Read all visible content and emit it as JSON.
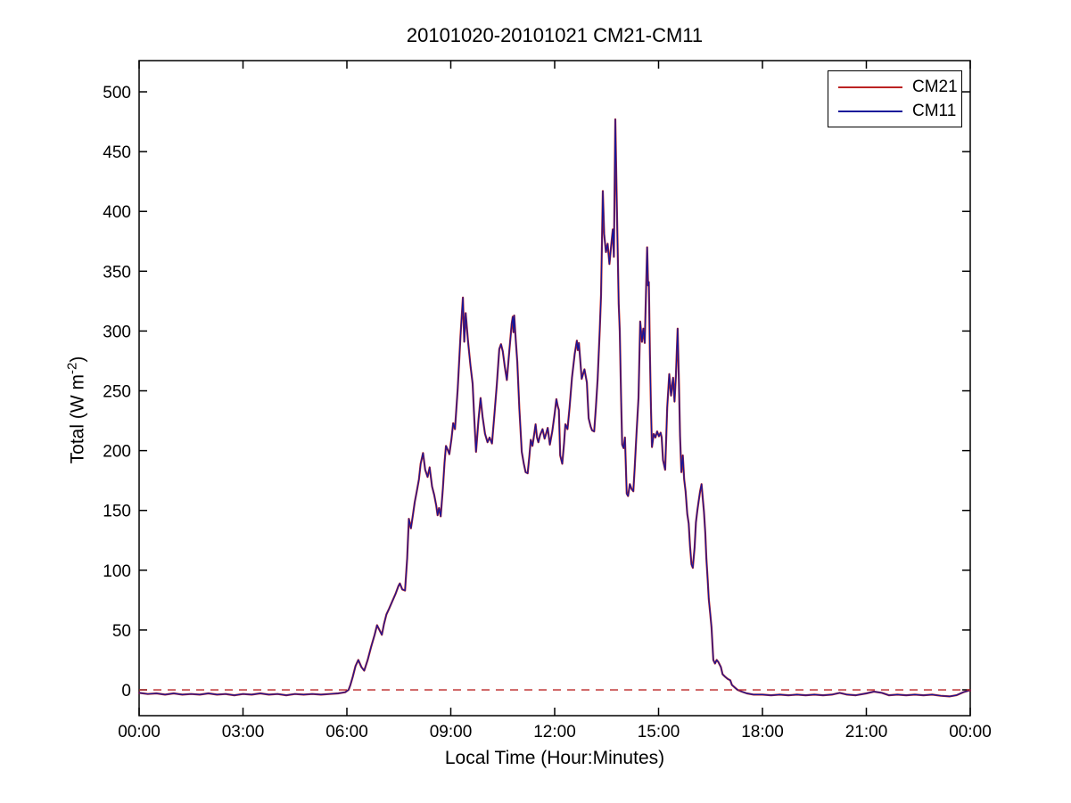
{
  "figure": {
    "title": "20101020-20101021 CM21-CM11",
    "xlabel": "Local Time (Hour:Minutes)",
    "ylabel_prefix": "Total (W m",
    "ylabel_sup": "-2",
    "ylabel_suffix": ")"
  },
  "legend": {
    "entries": [
      {
        "label": "CM21",
        "color": "#bb2323"
      },
      {
        "label": "CM11",
        "color": "#16169a"
      }
    ]
  },
  "chart_data": {
    "type": "line",
    "title": "20101020-20101021 CM21-CM11",
    "xlabel": "Local Time (Hour:Minutes)",
    "ylabel": "Total (W m-2)",
    "xlim": [
      0,
      24
    ],
    "ylim": [
      -21.6,
      526.1
    ],
    "grid": false,
    "legend_position": "top-right",
    "x_ticks": {
      "hours": [
        0,
        3,
        6,
        9,
        12,
        15,
        18,
        21,
        24
      ],
      "labels": [
        "00:00",
        "03:00",
        "06:00",
        "09:00",
        "12:00",
        "15:00",
        "18:00",
        "21:00",
        "00:00"
      ]
    },
    "y_ticks": [
      0,
      50,
      100,
      150,
      200,
      250,
      300,
      350,
      400,
      450,
      500
    ],
    "reference_line": {
      "y": 0,
      "style": "dashed",
      "color": "#bb2323"
    },
    "series": [
      {
        "name": "CM21",
        "color": "#bb2323",
        "width": 2.2
      },
      {
        "name": "CM11",
        "color": "#16169a",
        "width": 1.2
      }
    ],
    "series_note": "CM21 and CM11 are visually coincident; shared digitized points [local_hour, W m-2] below",
    "points": [
      [
        0,
        -2.5
      ],
      [
        0.25,
        -3.5
      ],
      [
        0.5,
        -3
      ],
      [
        0.75,
        -4
      ],
      [
        1,
        -3
      ],
      [
        1.25,
        -4
      ],
      [
        1.5,
        -3.5
      ],
      [
        1.75,
        -4
      ],
      [
        2,
        -3
      ],
      [
        2.25,
        -4
      ],
      [
        2.5,
        -3.5
      ],
      [
        2.75,
        -4.5
      ],
      [
        3,
        -3.5
      ],
      [
        3.25,
        -4
      ],
      [
        3.5,
        -3
      ],
      [
        3.75,
        -4
      ],
      [
        4,
        -3.5
      ],
      [
        4.25,
        -4.5
      ],
      [
        4.5,
        -3.5
      ],
      [
        4.75,
        -4
      ],
      [
        5,
        -3.5
      ],
      [
        5.25,
        -4
      ],
      [
        5.5,
        -3.5
      ],
      [
        5.75,
        -3
      ],
      [
        5.95,
        -2
      ],
      [
        6.05,
        0
      ],
      [
        6.1,
        4
      ],
      [
        6.17,
        11
      ],
      [
        6.25,
        20
      ],
      [
        6.33,
        25
      ],
      [
        6.42,
        19
      ],
      [
        6.5,
        16
      ],
      [
        6.6,
        25
      ],
      [
        6.7,
        36
      ],
      [
        6.8,
        46
      ],
      [
        6.87,
        54
      ],
      [
        6.94,
        50
      ],
      [
        7.01,
        46
      ],
      [
        7.07,
        55
      ],
      [
        7.14,
        63
      ],
      [
        7.22,
        68
      ],
      [
        7.31,
        74
      ],
      [
        7.4,
        80
      ],
      [
        7.49,
        87
      ],
      [
        7.53,
        89
      ],
      [
        7.6,
        84
      ],
      [
        7.68,
        83
      ],
      [
        7.74,
        110
      ],
      [
        7.79,
        143
      ],
      [
        7.85,
        135
      ],
      [
        7.91,
        147
      ],
      [
        7.96,
        157
      ],
      [
        8.02,
        166
      ],
      [
        8.08,
        176
      ],
      [
        8.13,
        189
      ],
      [
        8.2,
        198
      ],
      [
        8.26,
        184
      ],
      [
        8.33,
        178
      ],
      [
        8.39,
        186
      ],
      [
        8.46,
        170
      ],
      [
        8.52,
        163
      ],
      [
        8.58,
        154
      ],
      [
        8.62,
        146
      ],
      [
        8.66,
        152
      ],
      [
        8.71,
        145
      ],
      [
        8.77,
        168
      ],
      [
        8.82,
        190
      ],
      [
        8.86,
        204
      ],
      [
        8.92,
        200
      ],
      [
        8.96,
        197
      ],
      [
        9.02,
        210
      ],
      [
        9.07,
        223
      ],
      [
        9.12,
        218
      ],
      [
        9.2,
        252
      ],
      [
        9.28,
        296
      ],
      [
        9.35,
        328
      ],
      [
        9.39,
        291
      ],
      [
        9.43,
        315
      ],
      [
        9.5,
        291
      ],
      [
        9.57,
        271
      ],
      [
        9.63,
        256
      ],
      [
        9.68,
        226
      ],
      [
        9.73,
        199
      ],
      [
        9.8,
        226
      ],
      [
        9.86,
        244
      ],
      [
        9.92,
        228
      ],
      [
        9.99,
        214
      ],
      [
        10.06,
        207
      ],
      [
        10.12,
        211
      ],
      [
        10.19,
        206
      ],
      [
        10.26,
        230
      ],
      [
        10.33,
        255
      ],
      [
        10.4,
        285
      ],
      [
        10.45,
        289
      ],
      [
        10.5,
        283
      ],
      [
        10.56,
        270
      ],
      [
        10.62,
        259
      ],
      [
        10.69,
        283
      ],
      [
        10.76,
        306
      ],
      [
        10.79,
        312
      ],
      [
        10.81,
        299
      ],
      [
        10.83,
        313
      ],
      [
        10.88,
        291
      ],
      [
        10.92,
        274
      ],
      [
        10.98,
        235
      ],
      [
        11.05,
        199
      ],
      [
        11.11,
        189
      ],
      [
        11.16,
        182
      ],
      [
        11.22,
        181
      ],
      [
        11.27,
        196
      ],
      [
        11.31,
        209
      ],
      [
        11.36,
        204
      ],
      [
        11.41,
        214
      ],
      [
        11.45,
        222
      ],
      [
        11.49,
        211
      ],
      [
        11.53,
        207
      ],
      [
        11.58,
        213
      ],
      [
        11.65,
        218
      ],
      [
        11.71,
        210
      ],
      [
        11.76,
        215
      ],
      [
        11.8,
        219
      ],
      [
        11.86,
        205
      ],
      [
        11.93,
        216
      ],
      [
        12,
        231
      ],
      [
        12.05,
        243
      ],
      [
        12.09,
        237
      ],
      [
        12.12,
        234
      ],
      [
        12.16,
        196
      ],
      [
        12.22,
        189
      ],
      [
        12.27,
        206
      ],
      [
        12.31,
        222
      ],
      [
        12.37,
        218
      ],
      [
        12.43,
        236
      ],
      [
        12.5,
        261
      ],
      [
        12.58,
        281
      ],
      [
        12.64,
        292
      ],
      [
        12.67,
        284
      ],
      [
        12.7,
        290
      ],
      [
        12.78,
        260
      ],
      [
        12.86,
        268
      ],
      [
        12.93,
        257
      ],
      [
        12.98,
        227
      ],
      [
        13.04,
        220
      ],
      [
        13.08,
        217
      ],
      [
        13.14,
        216
      ],
      [
        13.19,
        236
      ],
      [
        13.24,
        260
      ],
      [
        13.3,
        300
      ],
      [
        13.34,
        330
      ],
      [
        13.39,
        417
      ],
      [
        13.43,
        381
      ],
      [
        13.48,
        366
      ],
      [
        13.53,
        373
      ],
      [
        13.58,
        356
      ],
      [
        13.63,
        371
      ],
      [
        13.68,
        385
      ],
      [
        13.71,
        362
      ],
      [
        13.75,
        477
      ],
      [
        13.78,
        430
      ],
      [
        13.81,
        382
      ],
      [
        13.85,
        323
      ],
      [
        13.88,
        300
      ],
      [
        13.92,
        240
      ],
      [
        13.95,
        205
      ],
      [
        13.99,
        202
      ],
      [
        14.03,
        211
      ],
      [
        14.08,
        164
      ],
      [
        14.12,
        162
      ],
      [
        14.17,
        172
      ],
      [
        14.22,
        168
      ],
      [
        14.27,
        166
      ],
      [
        14.31,
        185
      ],
      [
        14.36,
        212
      ],
      [
        14.42,
        244
      ],
      [
        14.47,
        308
      ],
      [
        14.52,
        291
      ],
      [
        14.56,
        302
      ],
      [
        14.6,
        290
      ],
      [
        14.64,
        335
      ],
      [
        14.67,
        370
      ],
      [
        14.7,
        338
      ],
      [
        14.72,
        341
      ],
      [
        14.75,
        281
      ],
      [
        14.78,
        235
      ],
      [
        14.81,
        203
      ],
      [
        14.86,
        214
      ],
      [
        14.91,
        211
      ],
      [
        14.96,
        216
      ],
      [
        15.01,
        212
      ],
      [
        15.06,
        215
      ],
      [
        15.09,
        211
      ],
      [
        15.13,
        192
      ],
      [
        15.19,
        184
      ],
      [
        15.25,
        236
      ],
      [
        15.31,
        264
      ],
      [
        15.36,
        246
      ],
      [
        15.42,
        261
      ],
      [
        15.46,
        241
      ],
      [
        15.5,
        262
      ],
      [
        15.55,
        302
      ],
      [
        15.59,
        255
      ],
      [
        15.62,
        212
      ],
      [
        15.66,
        182
      ],
      [
        15.7,
        196
      ],
      [
        15.74,
        176
      ],
      [
        15.78,
        166
      ],
      [
        15.83,
        147
      ],
      [
        15.87,
        139
      ],
      [
        15.91,
        120
      ],
      [
        15.95,
        105
      ],
      [
        15.99,
        102
      ],
      [
        16.04,
        119
      ],
      [
        16.08,
        140
      ],
      [
        16.12,
        150
      ],
      [
        16.16,
        158
      ],
      [
        16.2,
        166
      ],
      [
        16.24,
        172
      ],
      [
        16.28,
        159
      ],
      [
        16.31,
        149
      ],
      [
        16.35,
        131
      ],
      [
        16.38,
        110
      ],
      [
        16.42,
        92
      ],
      [
        16.45,
        76
      ],
      [
        16.49,
        64
      ],
      [
        16.53,
        52
      ],
      [
        16.58,
        25
      ],
      [
        16.63,
        22
      ],
      [
        16.68,
        25
      ],
      [
        16.73,
        23
      ],
      [
        16.8,
        19
      ],
      [
        16.85,
        13
      ],
      [
        16.92,
        11
      ],
      [
        17,
        9
      ],
      [
        17.07,
        8
      ],
      [
        17.12,
        4
      ],
      [
        17.2,
        2
      ],
      [
        17.28,
        0
      ],
      [
        17.4,
        -1.5
      ],
      [
        17.55,
        -3
      ],
      [
        17.75,
        -4
      ],
      [
        18,
        -4
      ],
      [
        18.25,
        -4.5
      ],
      [
        18.5,
        -4
      ],
      [
        18.75,
        -4.5
      ],
      [
        19,
        -4
      ],
      [
        19.25,
        -4.5
      ],
      [
        19.5,
        -4
      ],
      [
        19.75,
        -4.5
      ],
      [
        20,
        -4
      ],
      [
        20.23,
        -2.5
      ],
      [
        20.45,
        -4
      ],
      [
        20.7,
        -4.5
      ],
      [
        21,
        -3
      ],
      [
        21.22,
        -1.5
      ],
      [
        21.45,
        -2.5
      ],
      [
        21.65,
        -4.5
      ],
      [
        21.9,
        -4
      ],
      [
        22.15,
        -4.5
      ],
      [
        22.4,
        -4
      ],
      [
        22.65,
        -4.5
      ],
      [
        22.9,
        -4
      ],
      [
        23.15,
        -5
      ],
      [
        23.4,
        -5.5
      ],
      [
        23.6,
        -4.5
      ],
      [
        23.8,
        -2
      ],
      [
        23.97,
        -0.5
      ],
      [
        24,
        -0.5
      ]
    ]
  }
}
